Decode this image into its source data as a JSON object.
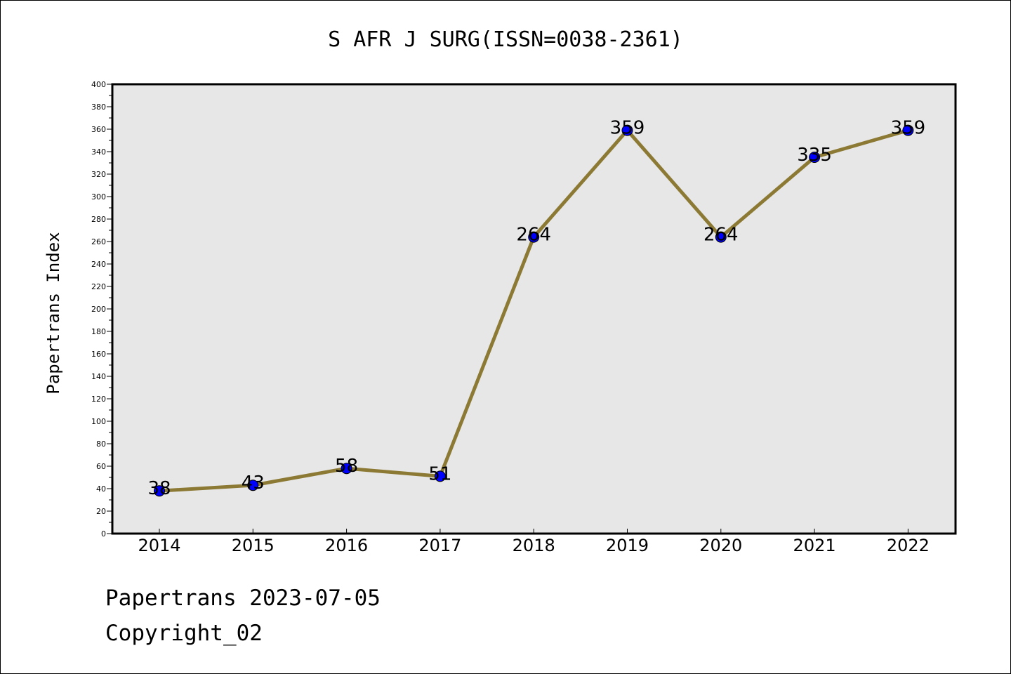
{
  "chart_data": {
    "type": "line",
    "title": "S AFR J SURG(ISSN=0038-2361)",
    "ylabel": "Papertrans Index",
    "xlabel": "",
    "categories": [
      "2014",
      "2015",
      "2016",
      "2017",
      "2018",
      "2019",
      "2020",
      "2021",
      "2022"
    ],
    "series": [
      {
        "values": [
          38,
          43,
          58,
          51,
          264,
          359,
          264,
          335,
          359
        ]
      }
    ],
    "data_labels": [
      "38",
      "43",
      "58",
      "51",
      "264",
      "359",
      "264",
      "335",
      "359"
    ],
    "ylim": [
      0,
      400
    ],
    "y_major_step": 20,
    "y_minor_step": 10,
    "grid": false,
    "colors": {
      "line": "#8c7a34",
      "marker": "#0000ff",
      "plot_background": "#e7e7e7"
    }
  },
  "footer": {
    "source": "Papertrans 2023-07-05",
    "copyright": "Copyright_02"
  }
}
